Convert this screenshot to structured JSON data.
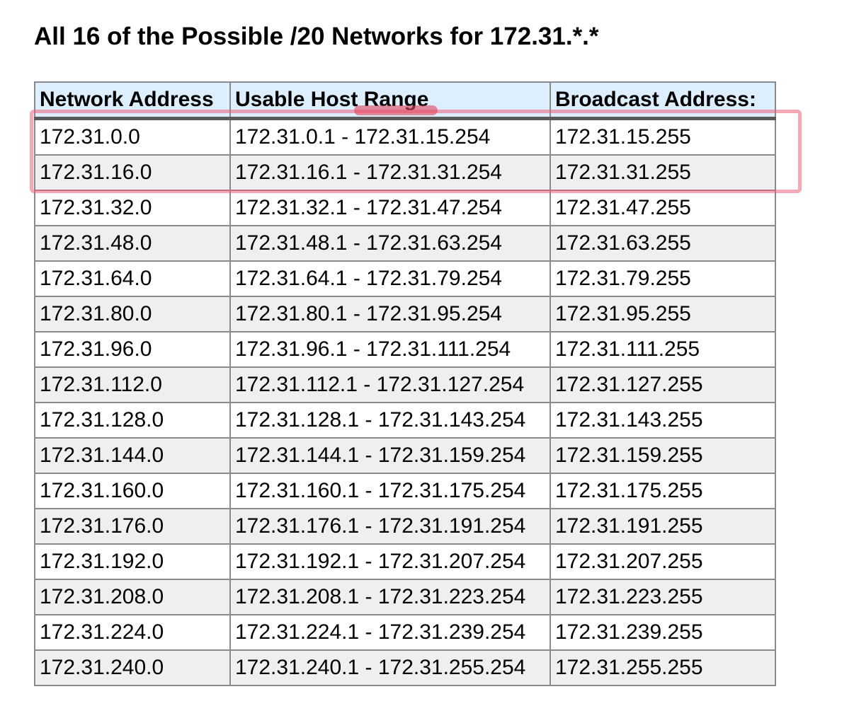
{
  "page": {
    "title": "All 16 of the Possible /20 Networks for 172.31.*.*"
  },
  "table": {
    "headers": [
      "Network Address",
      "Usable Host Range",
      "Broadcast Address:"
    ],
    "rows": [
      [
        "172.31.0.0",
        "172.31.0.1 - 172.31.15.254",
        "172.31.15.255"
      ],
      [
        "172.31.16.0",
        "172.31.16.1 - 172.31.31.254",
        "172.31.31.255"
      ],
      [
        "172.31.32.0",
        "172.31.32.1 - 172.31.47.254",
        "172.31.47.255"
      ],
      [
        "172.31.48.0",
        "172.31.48.1 - 172.31.63.254",
        "172.31.63.255"
      ],
      [
        "172.31.64.0",
        "172.31.64.1 - 172.31.79.254",
        "172.31.79.255"
      ],
      [
        "172.31.80.0",
        "172.31.80.1 - 172.31.95.254",
        "172.31.95.255"
      ],
      [
        "172.31.96.0",
        "172.31.96.1 - 172.31.111.254",
        "172.31.111.255"
      ],
      [
        "172.31.112.0",
        "172.31.112.1 - 172.31.127.254",
        "172.31.127.255"
      ],
      [
        "172.31.128.0",
        "172.31.128.1 - 172.31.143.254",
        "172.31.143.255"
      ],
      [
        "172.31.144.0",
        "172.31.144.1 - 172.31.159.254",
        "172.31.159.255"
      ],
      [
        "172.31.160.0",
        "172.31.160.1 - 172.31.175.254",
        "172.31.175.255"
      ],
      [
        "172.31.176.0",
        "172.31.176.1 - 172.31.191.254",
        "172.31.191.255"
      ],
      [
        "172.31.192.0",
        "172.31.192.1 - 172.31.207.254",
        "172.31.207.255"
      ],
      [
        "172.31.208.0",
        "172.31.208.1 - 172.31.223.254",
        "172.31.223.255"
      ],
      [
        "172.31.224.0",
        "172.31.224.1 - 172.31.239.254",
        "172.31.239.255"
      ],
      [
        "172.31.240.0",
        "172.31.240.1 - 172.31.255.254",
        "172.31.255.255"
      ]
    ]
  },
  "annotations": {
    "highlighted_rows": [
      0,
      1
    ],
    "highlight_color": "#ec6078",
    "header_marker_color": "#e1465f"
  },
  "colors": {
    "header_bg": "#ddeeff",
    "row_alt_bg": "#efefef",
    "border": "#8a8a8a",
    "header_rule": "#5a5a5a"
  }
}
